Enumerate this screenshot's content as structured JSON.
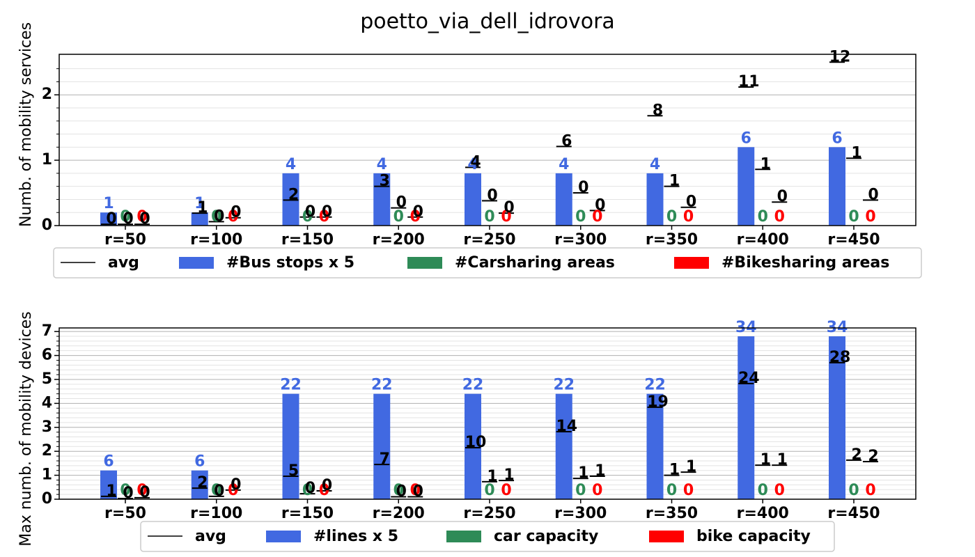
{
  "chart_data": [
    {
      "type": "bar",
      "title": "poetto_via_dell_idrovora",
      "ylabel": "Numb. of mobility services",
      "categories": [
        "r=50",
        "r=100",
        "r=150",
        "r=200",
        "r=250",
        "r=300",
        "r=350",
        "r=400",
        "r=450"
      ],
      "ylim": [
        0,
        2.62
      ],
      "yticks": [
        0,
        1,
        2
      ],
      "minor_yticks": [
        0.2,
        0.4,
        0.6,
        0.8,
        1.2,
        1.4,
        1.6,
        1.8,
        2.2,
        2.4
      ],
      "grid": true,
      "series": [
        {
          "name": "avg",
          "color": "#000000",
          "style": "hline",
          "values": [
            [
              0.02,
              0.02,
              0.02
            ],
            [
              0.19,
              0.06,
              0.12
            ],
            [
              0.39,
              0.13,
              0.13
            ],
            [
              0.6,
              0.27,
              0.13
            ],
            [
              0.89,
              0.38,
              0.19
            ],
            [
              1.21,
              0.5,
              0.23
            ],
            [
              1.68,
              0.6,
              0.28
            ],
            [
              2.12,
              0.86,
              0.36
            ],
            [
              2.5,
              1.03,
              0.39
            ]
          ],
          "value_labels": [
            [
              "0",
              "0",
              "0"
            ],
            [
              "1",
              "0",
              "0"
            ],
            [
              "2",
              "0",
              "0"
            ],
            [
              "3",
              "0",
              "0"
            ],
            [
              "4",
              "0",
              "0"
            ],
            [
              "6",
              "0",
              "0"
            ],
            [
              "8",
              "1",
              "0"
            ],
            [
              "11",
              "1",
              "0"
            ],
            [
              "12",
              "1",
              "0"
            ]
          ]
        },
        {
          "name": "#Bus stops x 5",
          "color": "#4169e1",
          "style": "bar",
          "values": [
            0.2,
            0.2,
            0.8,
            0.8,
            0.8,
            0.8,
            0.8,
            1.2,
            1.2
          ],
          "value_labels": [
            "1",
            "1",
            "4",
            "4",
            "4",
            "4",
            "4",
            "6",
            "6"
          ]
        },
        {
          "name": "#Carsharing areas",
          "color": "#2e8b57",
          "style": "bar",
          "values": [
            0,
            0,
            0,
            0,
            0,
            0,
            0,
            0,
            0
          ]
        },
        {
          "name": "#Bikesharing areas",
          "color": "#ff0000",
          "style": "bar",
          "values": [
            0,
            0,
            0,
            0,
            0,
            0,
            0,
            0,
            0
          ]
        }
      ]
    },
    {
      "type": "bar",
      "ylabel": "Max numb. of mobility devices",
      "categories": [
        "r=50",
        "r=100",
        "r=150",
        "r=200",
        "r=250",
        "r=300",
        "r=350",
        "r=400",
        "r=450"
      ],
      "ylim": [
        0,
        7.15
      ],
      "yticks": [
        0,
        1,
        2,
        3,
        4,
        5,
        6,
        7
      ],
      "minor_yticks": [
        0.2,
        0.4,
        0.6,
        0.8,
        1.2,
        1.4,
        1.6,
        1.8,
        2.2,
        2.4,
        2.6,
        2.8,
        3.2,
        3.4,
        3.6,
        3.8,
        4.2,
        4.4,
        4.6,
        4.8,
        5.2,
        5.4,
        5.6,
        5.8,
        6.2,
        6.4,
        6.6,
        6.8
      ],
      "grid": true,
      "series": [
        {
          "name": "avg",
          "color": "#000000",
          "style": "hline",
          "values": [
            [
              0.12,
              0.03,
              0.06
            ],
            [
              0.46,
              0.12,
              0.38
            ],
            [
              0.96,
              0.23,
              0.35
            ],
            [
              1.45,
              0.1,
              0.1
            ],
            [
              2.15,
              0.73,
              0.78
            ],
            [
              2.82,
              0.87,
              0.96
            ],
            [
              3.84,
              1.0,
              1.13
            ],
            [
              4.83,
              1.42,
              1.42
            ],
            [
              5.7,
              1.63,
              1.57
            ]
          ],
          "value_labels": [
            [
              "1",
              "0",
              "0"
            ],
            [
              "2",
              "0",
              "0"
            ],
            [
              "5",
              "0",
              "0"
            ],
            [
              "7",
              "0",
              "0"
            ],
            [
              "10",
              "1",
              "1"
            ],
            [
              "14",
              "1",
              "1"
            ],
            [
              "19",
              "1",
              "1"
            ],
            [
              "24",
              "1",
              "1"
            ],
            [
              "28",
              "2",
              "2"
            ]
          ]
        },
        {
          "name": "#lines x 5",
          "color": "#4169e1",
          "style": "bar",
          "values": [
            1.2,
            1.2,
            4.4,
            4.4,
            4.4,
            4.4,
            4.4,
            6.8,
            6.8
          ],
          "value_labels": [
            "6",
            "6",
            "22",
            "22",
            "22",
            "22",
            "22",
            "34",
            "34"
          ]
        },
        {
          "name": "car capacity",
          "color": "#2e8b57",
          "style": "bar",
          "values": [
            0,
            0,
            0,
            0,
            0,
            0,
            0,
            0,
            0
          ]
        },
        {
          "name": "bike capacity",
          "color": "#ff0000",
          "style": "bar",
          "values": [
            0,
            0,
            0,
            0,
            0,
            0,
            0,
            0,
            0
          ]
        }
      ]
    }
  ]
}
